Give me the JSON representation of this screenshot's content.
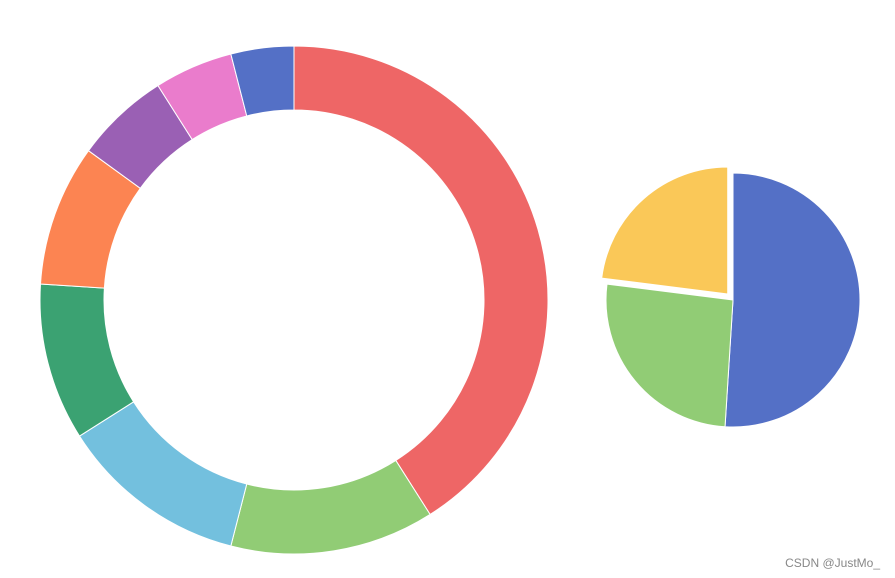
{
  "chart_data": [
    {
      "type": "donut",
      "values": [
        41,
        13,
        12,
        10,
        9,
        6,
        5,
        4
      ],
      "colors": [
        "#ee6666",
        "#91cc75",
        "#73c0de",
        "#3ba272",
        "#fc8452",
        "#9a60b4",
        "#ea7ccc",
        "#5470c6"
      ]
    },
    {
      "type": "pie",
      "values": [
        51,
        26,
        23
      ],
      "colors": [
        "#5470c6",
        "#91cc75",
        "#fac858"
      ],
      "exploded": [
        false,
        false,
        true
      ]
    }
  ],
  "watermark": "CSDN @JustMo_"
}
